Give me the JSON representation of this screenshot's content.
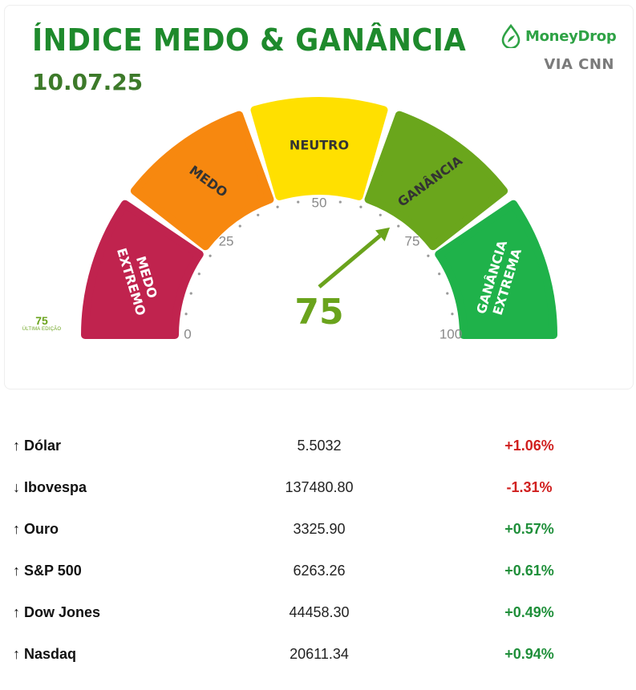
{
  "header": {
    "title": "ÍNDICE MEDO & GANÂNCIA",
    "date": "10.07.25"
  },
  "brand": {
    "name": "MoneyDrop",
    "via": "VIA CNN",
    "color": "#2ea245"
  },
  "gauge": {
    "value": 75,
    "value_label": "75",
    "min": 0,
    "max": 100,
    "ticks": [
      "0",
      "25",
      "50",
      "75",
      "100"
    ],
    "segments": [
      {
        "label_lines": [
          "MEDO",
          "EXTREMO"
        ],
        "color": "#c0234e"
      },
      {
        "label_lines": [
          "MEDO"
        ],
        "color": "#f7880f"
      },
      {
        "label_lines": [
          "NEUTRO"
        ],
        "color": "#ffe000"
      },
      {
        "label_lines": [
          "GANÂNCIA"
        ],
        "color": "#6aa61c"
      },
      {
        "label_lines": [
          "GANÂNCIA",
          "EXTREMA"
        ],
        "color": "#1fb24a"
      }
    ],
    "needle_color": "#6aa31c",
    "last_edition": {
      "value": "75",
      "label": "ÚLTIMA EDIÇÃO"
    }
  },
  "markets": [
    {
      "arrow": "↑",
      "name": "Dólar",
      "price": "5.5032",
      "change": "+1.06%",
      "direction": "negative"
    },
    {
      "arrow": "↓",
      "name": "Ibovespa",
      "price": "137480.80",
      "change": "-1.31%",
      "direction": "negative"
    },
    {
      "arrow": "↑",
      "name": "Ouro",
      "price": "3325.90",
      "change": "+0.57%",
      "direction": "positive"
    },
    {
      "arrow": "↑",
      "name": "S&P 500",
      "price": "6263.26",
      "change": "+0.61%",
      "direction": "positive"
    },
    {
      "arrow": "↑",
      "name": "Dow Jones",
      "price": "44458.30",
      "change": "+0.49%",
      "direction": "positive"
    },
    {
      "arrow": "↑",
      "name": "Nasdaq",
      "price": "20611.34",
      "change": "+0.94%",
      "direction": "positive"
    }
  ]
}
